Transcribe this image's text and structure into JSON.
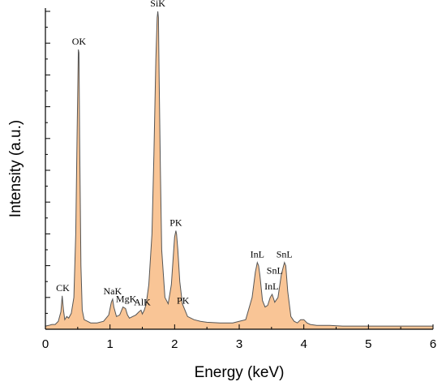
{
  "chart_data": {
    "type": "area",
    "xlabel": "Energy (keV)",
    "ylabel": "Intensity (a.u.)",
    "xlim": [
      0,
      6
    ],
    "ylim": [
      0,
      100
    ],
    "x_ticks": [
      "0",
      "1",
      "2",
      "3",
      "4",
      "5",
      "6"
    ],
    "y_tick_labels_shown": false,
    "grid": false,
    "colors": {
      "fill": "#f9c596",
      "line": "#555555",
      "axis": "#000000"
    },
    "series": [
      {
        "x": [
          0.0,
          0.05,
          0.1,
          0.15,
          0.2,
          0.24,
          0.26,
          0.28,
          0.3,
          0.33,
          0.36,
          0.4,
          0.44,
          0.47,
          0.49,
          0.51,
          0.52,
          0.53,
          0.55,
          0.57,
          0.6,
          0.65,
          0.7,
          0.8,
          0.9,
          0.98,
          1.02,
          1.04,
          1.06,
          1.1,
          1.15,
          1.2,
          1.24,
          1.27,
          1.3,
          1.35,
          1.4,
          1.45,
          1.48,
          1.5,
          1.53,
          1.56,
          1.6,
          1.65,
          1.68,
          1.71,
          1.73,
          1.74,
          1.75,
          1.76,
          1.78,
          1.8,
          1.85,
          1.9,
          1.95,
          1.98,
          2.0,
          2.02,
          2.03,
          2.05,
          2.08,
          2.12,
          2.2,
          2.3,
          2.4,
          2.5,
          2.7,
          2.9,
          3.1,
          3.2,
          3.25,
          3.28,
          3.3,
          3.32,
          3.36,
          3.4,
          3.44,
          3.48,
          3.51,
          3.55,
          3.6,
          3.65,
          3.68,
          3.7,
          3.72,
          3.75,
          3.8,
          3.85,
          3.9,
          3.95,
          4.0,
          4.05,
          4.1,
          4.2,
          4.4,
          4.6,
          4.8,
          5.0,
          5.2,
          5.4,
          5.6,
          5.8,
          6.0
        ],
        "values": [
          1.0,
          1.2,
          1.5,
          1.5,
          2.5,
          5.5,
          10.5,
          6.0,
          3.0,
          4.0,
          3.5,
          5.0,
          10.0,
          30.0,
          60.0,
          88.0,
          87.0,
          60.0,
          20.0,
          6.0,
          3.0,
          2.5,
          2.0,
          2.0,
          2.5,
          4.5,
          8.5,
          9.5,
          7.0,
          4.0,
          4.5,
          7.0,
          6.5,
          4.5,
          3.5,
          4.0,
          4.5,
          5.5,
          6.0,
          4.8,
          6.0,
          8.0,
          14.0,
          30.0,
          55.0,
          85.0,
          98.0,
          100.0,
          98.0,
          80.0,
          50.0,
          25.0,
          10.0,
          8.0,
          14.0,
          23.0,
          29.0,
          31.0,
          30.0,
          25.0,
          15.0,
          8.0,
          4.0,
          3.0,
          2.5,
          2.2,
          2.0,
          2.0,
          3.0,
          10.0,
          18.0,
          21.0,
          20.0,
          17.0,
          9.0,
          7.0,
          7.5,
          10.0,
          11.0,
          8.5,
          10.0,
          17.0,
          19.5,
          21.0,
          20.0,
          12.0,
          4.0,
          2.5,
          2.0,
          3.0,
          3.0,
          2.0,
          1.5,
          1.2,
          1.2,
          1.0,
          1.0,
          1.0,
          1.0,
          1.0,
          1.0,
          1.0,
          1.0
        ]
      }
    ],
    "annotations": [
      {
        "text": "CK",
        "x": 0.27,
        "y": 10.5
      },
      {
        "text": "OK",
        "x": 0.52,
        "y": 88.0
      },
      {
        "text": "NaK",
        "x": 1.04,
        "y": 9.5
      },
      {
        "text": "MgK",
        "x": 1.25,
        "y": 7.0
      },
      {
        "text": "AlK",
        "x": 1.5,
        "y": 6.0
      },
      {
        "text": "SiK",
        "x": 1.74,
        "y": 100.0
      },
      {
        "text": "PK",
        "x": 2.02,
        "y": 31.0
      },
      {
        "text": "PK",
        "x": 2.13,
        "y": 6.5
      },
      {
        "text": "InL",
        "x": 3.28,
        "y": 21.0
      },
      {
        "text": "InL",
        "x": 3.5,
        "y": 11.0
      },
      {
        "text": "SnL",
        "x": 3.55,
        "y": 16.0
      },
      {
        "text": "SnL",
        "x": 3.7,
        "y": 21.0
      }
    ]
  }
}
